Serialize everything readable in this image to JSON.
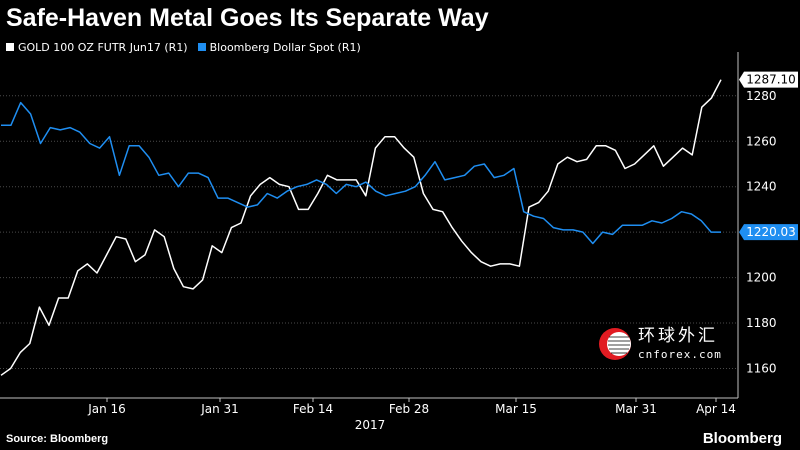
{
  "title": "Safe-Haven Metal Goes Its Separate Way",
  "legend": [
    {
      "label": "GOLD 100 OZ FUTR Jun17  (R1)",
      "color": "#ffffff"
    },
    {
      "label": "Bloomberg Dollar Spot  (R1)",
      "color": "#1f8ef1"
    }
  ],
  "footer": {
    "source": "Source: Bloomberg",
    "brand": "Bloomberg"
  },
  "watermark": {
    "cn": "环球外汇",
    "en": "cnforex.com"
  },
  "chart_data": {
    "type": "line",
    "xlabel": "2017",
    "x_ticks": [
      "Jan 16",
      "Jan 31",
      "Feb 14",
      "Feb 28",
      "Mar 15",
      "Mar 31",
      "Apr 14"
    ],
    "y_ticks": [
      1160,
      1180,
      1200,
      1220,
      1240,
      1260,
      1280
    ],
    "ylim": [
      1147,
      1294
    ],
    "grid": {
      "horizontal": true,
      "vertical": false
    },
    "last_value_labels": [
      {
        "series": "GOLD 100 OZ FUTR Jun17  (R1)",
        "text": "1287.10"
      },
      {
        "series": "Bloomberg Dollar Spot  (R1)",
        "text": "1220.03"
      }
    ],
    "series": [
      {
        "name": "GOLD 100 OZ FUTR Jun17  (R1)",
        "color": "#ffffff",
        "values": [
          1157,
          1160,
          1167,
          1171,
          1187,
          1179,
          1191,
          1191,
          1203,
          1206,
          1202,
          1210,
          1218,
          1217,
          1207,
          1210,
          1221,
          1218,
          1204,
          1196,
          1195,
          1199,
          1214,
          1211,
          1222,
          1224,
          1236,
          1241,
          1244,
          1241,
          1240,
          1230,
          1230,
          1237,
          1245,
          1243,
          1243,
          1243,
          1236,
          1257,
          1262,
          1262,
          1257,
          1253,
          1237,
          1230,
          1229,
          1222,
          1216,
          1211,
          1207,
          1205,
          1206,
          1206,
          1205,
          1231,
          1233,
          1238,
          1250,
          1253,
          1251,
          1252,
          1258,
          1258,
          1256,
          1248,
          1250,
          1254,
          1258,
          1249,
          1253,
          1257,
          1254,
          1275,
          1279,
          1287.1
        ]
      },
      {
        "name": "Bloomberg Dollar Spot  (R1)",
        "color": "#1f8ef1",
        "values": [
          1267,
          1267,
          1277,
          1272,
          1259,
          1266,
          1265,
          1266,
          1264,
          1259,
          1257,
          1262,
          1245,
          1258,
          1258,
          1253,
          1245,
          1246,
          1240,
          1246,
          1246,
          1244,
          1235,
          1235,
          1233,
          1231,
          1232,
          1237,
          1235,
          1238,
          1240,
          1241,
          1243,
          1241,
          1237,
          1241,
          1240,
          1242,
          1238,
          1236,
          1237,
          1238,
          1240,
          1245,
          1251,
          1243,
          1244,
          1245,
          1249,
          1250,
          1244,
          1245,
          1248,
          1229,
          1227,
          1226,
          1222,
          1221,
          1221,
          1220,
          1215,
          1220,
          1219,
          1223,
          1223,
          1223,
          1225,
          1224,
          1226,
          1229,
          1228,
          1225,
          1220.03,
          1220.03
        ]
      }
    ]
  }
}
